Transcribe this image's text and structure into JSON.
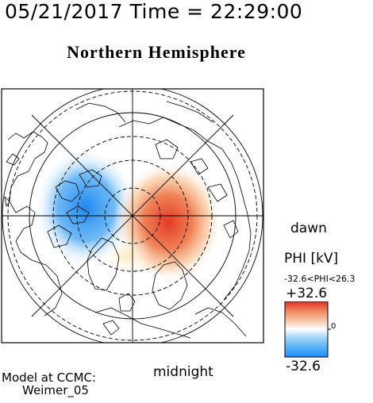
{
  "header": {
    "timestamp": "05/21/2017 Time = 22:29:00"
  },
  "plot": {
    "title": "Northern Hemisphere",
    "label_dawn": "dawn",
    "label_midnight": "midnight",
    "field_colors": {
      "negative": "#2f8ff0",
      "positive": "#e8442a",
      "neutral": "#ffffff"
    }
  },
  "colorbar": {
    "variable_label": "PHI [kV]",
    "range_label": "-32.6<PHI<26.3",
    "max_label": "+32.6",
    "min_label": "-32.6",
    "zero_label": "0",
    "colors": [
      "#1e90ff",
      "#5ab4f5",
      "#a8d8f7",
      "#ffffff",
      "#f7c9b0",
      "#f08a60",
      "#e0302a"
    ]
  },
  "footer": {
    "model_line1": "Model at CCMC:",
    "model_line2": "Weimer_05"
  }
}
